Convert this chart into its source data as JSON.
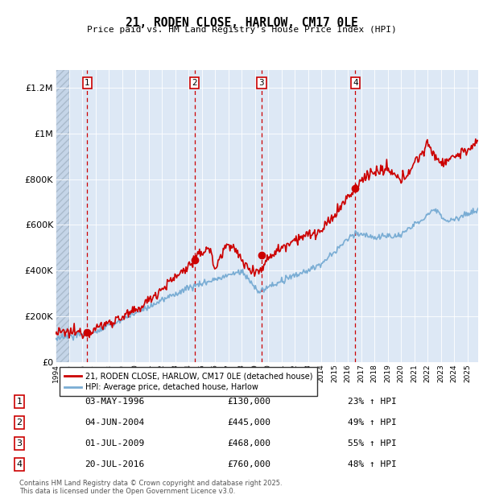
{
  "title": "21, RODEN CLOSE, HARLOW, CM17 0LE",
  "subtitle": "Price paid vs. HM Land Registry's House Price Index (HPI)",
  "transactions": [
    {
      "num": 1,
      "date_label": "03-MAY-1996",
      "year": 1996.37,
      "price": 130000,
      "hpi_pct": "23% ↑ HPI"
    },
    {
      "num": 2,
      "date_label": "04-JUN-2004",
      "year": 2004.46,
      "price": 445000,
      "hpi_pct": "49% ↑ HPI"
    },
    {
      "num": 3,
      "date_label": "01-JUL-2009",
      "year": 2009.5,
      "price": 468000,
      "hpi_pct": "55% ↑ HPI"
    },
    {
      "num": 4,
      "date_label": "20-JUL-2016",
      "year": 2016.55,
      "price": 760000,
      "hpi_pct": "48% ↑ HPI"
    }
  ],
  "price_line_color": "#cc0000",
  "hpi_line_color": "#7aadd4",
  "background_plot": "#dde8f5",
  "ytick_labels": [
    "£0",
    "£200K",
    "£400K",
    "£600K",
    "£800K",
    "£1M",
    "£1.2M"
  ],
  "ytick_values": [
    0,
    200000,
    400000,
    600000,
    800000,
    1000000,
    1200000
  ],
  "ylim": [
    0,
    1280000
  ],
  "xlim_start": 1994,
  "xlim_end": 2025.8,
  "legend_label_price": "21, RODEN CLOSE, HARLOW, CM17 0LE (detached house)",
  "legend_label_hpi": "HPI: Average price, detached house, Harlow",
  "footer": "Contains HM Land Registry data © Crown copyright and database right 2025.\nThis data is licensed under the Open Government Licence v3.0."
}
